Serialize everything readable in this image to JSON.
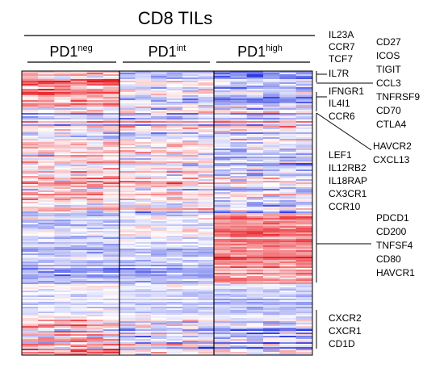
{
  "chart_data": {
    "type": "heatmap",
    "title": "CD8 TILs",
    "groups": [
      {
        "base": "PD1",
        "sup": "neg"
      },
      {
        "base": "PD1",
        "sup": "int"
      },
      {
        "base": "PD1",
        "sup": "high"
      }
    ],
    "colors": {
      "low": "#1f2ee0",
      "mid": "#ffffff",
      "high": "#e8141c"
    },
    "value_range": [
      -1,
      1
    ],
    "left_gene_clusters": [
      {
        "genes": [
          "IL23A",
          "CCR7",
          "TCF7",
          "IL7R"
        ]
      },
      {
        "genes": [
          "IFNGR1",
          "IL4I1",
          "CCR6"
        ]
      },
      {
        "genes": [
          "LEF1",
          "IL12RB2",
          "IL18RAP",
          "CX3CR1",
          "CCR10"
        ]
      },
      {
        "genes": [
          "CXCR2",
          "CXCR1",
          "CD1D"
        ]
      }
    ],
    "right_gene_clusters": [
      {
        "genes": [
          "CD27",
          "ICOS",
          "TIGIT",
          "CCL3",
          "TNFRSF9",
          "CD70",
          "CTLA4"
        ]
      },
      {
        "genes": [
          "HAVCR2",
          "CXCL13"
        ]
      },
      {
        "genes": [
          "PDCD1",
          "CD200",
          "TNFSF4",
          "CD80",
          "HAVCR1"
        ]
      }
    ],
    "row_blocks": [
      {
        "mean": [
          0.35,
          -0.2,
          -0.45
        ],
        "sd": 0.45
      },
      {
        "mean": [
          0.0,
          0.0,
          0.0
        ],
        "sd": 0.5
      },
      {
        "mean": [
          0.1,
          0.05,
          -0.25
        ],
        "sd": 0.5
      },
      {
        "mean": [
          0.15,
          0.05,
          -0.15
        ],
        "sd": 0.55
      },
      {
        "mean": [
          -0.2,
          -0.05,
          0.55
        ],
        "sd": 0.35
      },
      {
        "mean": [
          -0.3,
          -0.3,
          0.45
        ],
        "sd": 0.35
      },
      {
        "mean": [
          -0.05,
          -0.15,
          -0.2
        ],
        "sd": 0.25
      },
      {
        "mean": [
          0.25,
          -0.1,
          -0.2
        ],
        "sd": 0.6
      }
    ]
  }
}
